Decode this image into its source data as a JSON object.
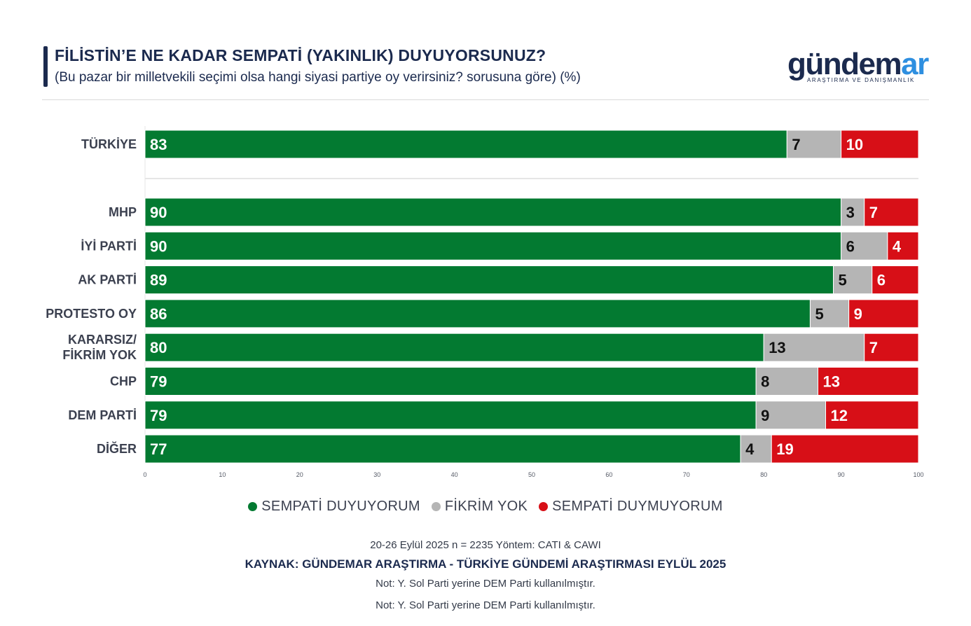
{
  "header": {
    "title": "FİLİSTİN’E NE KADAR SEMPATİ (YAKINLIK) DUYUYORSUNUZ?",
    "subtitle": "(Bu pazar bir milletvekili seçimi olsa hangi siyasi partiye oy verirsiniz? sorusuna göre) (%)"
  },
  "logo": {
    "word_part1": "gündem",
    "word_part2": "ar",
    "tagline": "ARAŞTIRMA VE DANIŞMANLIK"
  },
  "colors": {
    "sympathy": "#037a31",
    "no_opinion": "#b5b5b5",
    "no_sympathy": "#d70f17",
    "navy": "#1b2a4e",
    "logo_accent": "#2e8fe0"
  },
  "chart_data": {
    "type": "bar",
    "orientation": "horizontal",
    "stacked": true,
    "categories": [
      "TÜRKİYE",
      "MHP",
      "İYİ PARTİ",
      "AK PARTİ",
      "PROTESTO OY",
      "KARARSIZ/ FİKRİM YOK",
      "CHP",
      "DEM PARTİ",
      "DİĞER"
    ],
    "series": [
      {
        "name": "SEMPATİ DUYUYORUM",
        "values": [
          83,
          90,
          90,
          89,
          86,
          80,
          79,
          79,
          77
        ]
      },
      {
        "name": "FİKRİM YOK",
        "values": [
          7,
          3,
          6,
          5,
          5,
          13,
          8,
          9,
          4
        ]
      },
      {
        "name": "SEMPATİ DUYMUYORUM",
        "values": [
          10,
          7,
          4,
          6,
          9,
          7,
          13,
          12,
          19
        ]
      }
    ],
    "xlim": [
      0,
      100
    ],
    "xticks": [
      0,
      10,
      20,
      30,
      40,
      50,
      60,
      70,
      80,
      90,
      100
    ],
    "xlabel": "",
    "ylabel": "",
    "legend_position": "bottom"
  },
  "footer": {
    "method": "20-26 Eylül 2025 n = 2235 Yöntem: CATI & CAWI",
    "source": "KAYNAK: GÜNDEMAR ARAŞTIRMA - TÜRKİYE GÜNDEMİ ARAŞTIRMASI EYLÜL 2025",
    "note": "Not: Y. Sol Parti yerine DEM Parti kullanılmıştır.",
    "note_repeat": "Not: Y. Sol Parti yerine DEM Parti kullanılmıştır."
  }
}
